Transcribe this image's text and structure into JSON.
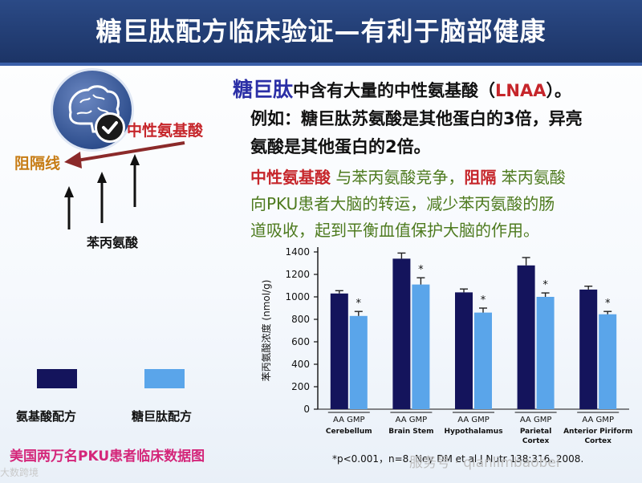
{
  "header": {
    "title": "糖巨肽配方临床验证—有利于脑部健康"
  },
  "diagram": {
    "lnaa_label": "中性氨基酸",
    "barrier_label": "阻隔线",
    "phe_label": "苯丙氨酸",
    "icons": [
      "brain-icon",
      "check-icon"
    ]
  },
  "text": {
    "brand": "糖巨肽",
    "line1_rest_a": "中含有大量的中性氨基酸（",
    "line1_lnaa": "LNAA",
    "line1_rest_b": "）。",
    "line2": "例如：糖巨肽苏氨酸是其他蛋白的3倍，异亮",
    "line3": "氨酸是其他蛋白的2倍。",
    "p2_hl1": "中性氨基酸",
    "p2_t1": "与苯丙氨酸竞争，",
    "p2_hl2": "阻隔",
    "p2_t2": "苯丙氨酸",
    "p2_line2": "向PKU患者大脑的转运，减少苯丙氨酸的肠",
    "p2_line3": "道吸收，起到平衡血值保护大脑的作用。"
  },
  "legend": {
    "item1": "氨基酸配方",
    "item2": "糖巨肽配方",
    "colors": {
      "aa": "#14145c",
      "gmp": "#5aa5ea"
    }
  },
  "footnote": "美国两万名PKU患者临床数据图",
  "chart_data": {
    "type": "bar",
    "ylabel": "苯丙氨酸浓度 (nmol/g)",
    "ylim": [
      0,
      1400
    ],
    "yticks": [
      0,
      200,
      400,
      600,
      800,
      1000,
      1200,
      1400
    ],
    "categories": [
      "Cerebellum",
      "Brain Stem",
      "Hypothalamus",
      "Parietal Cortex",
      "Anterior Piriform Cortex"
    ],
    "group_label": "AA GMP",
    "series": [
      {
        "values": [
          1030,
          1340,
          1040,
          1280,
          1065
        ],
        "errors": [
          25,
          50,
          30,
          70,
          30
        ],
        "color": "#14145c"
      },
      {
        "values": [
          830,
          1110,
          860,
          1000,
          845
        ],
        "errors": [
          40,
          60,
          40,
          35,
          25
        ],
        "color": "#5aa5ea"
      }
    ],
    "significance": [
      "*",
      "*",
      "*",
      "*",
      "*"
    ],
    "note": "*p<0.001，n=8. Ney DM et al J Nutr 138:316. 2008."
  },
  "watermark": {
    "right": "服务号 · qianlimbaobei",
    "left": "大数跨境"
  }
}
